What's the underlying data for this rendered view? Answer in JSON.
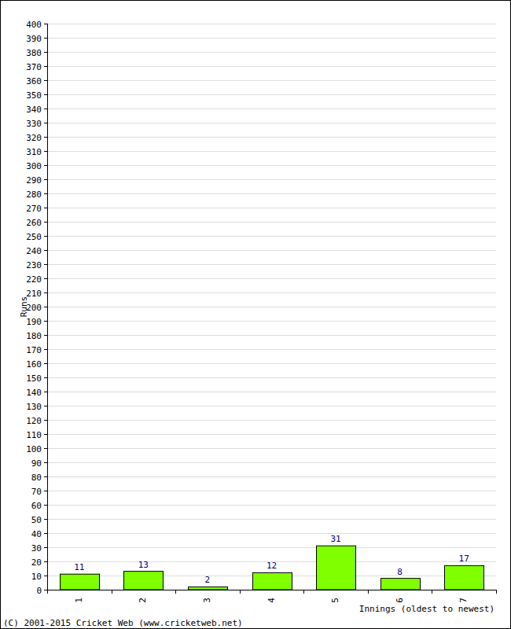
{
  "chart_data": {
    "type": "bar",
    "x_label": "Innings (oldest to newest)",
    "y_label": "Runs",
    "annotations": [
      "(C) 2001-2015 Cricket Web (www.cricketweb.net)"
    ],
    "categories": [
      "1",
      "2",
      "3",
      "4",
      "5",
      "6",
      "7"
    ],
    "values": [
      11,
      13,
      2,
      12,
      31,
      8,
      17
    ],
    "color": "#80ff00",
    "ylim": [
      0,
      400
    ],
    "yticks": [
      0,
      10,
      20,
      30,
      40,
      50,
      60,
      70,
      80,
      90,
      100,
      110,
      120,
      130,
      140,
      150,
      160,
      170,
      180,
      190,
      200,
      210,
      220,
      230,
      240,
      250,
      260,
      270,
      280,
      290,
      300,
      310,
      320,
      330,
      340,
      350,
      360,
      370,
      380,
      390,
      400
    ],
    "grid": true,
    "data_labels": true
  }
}
